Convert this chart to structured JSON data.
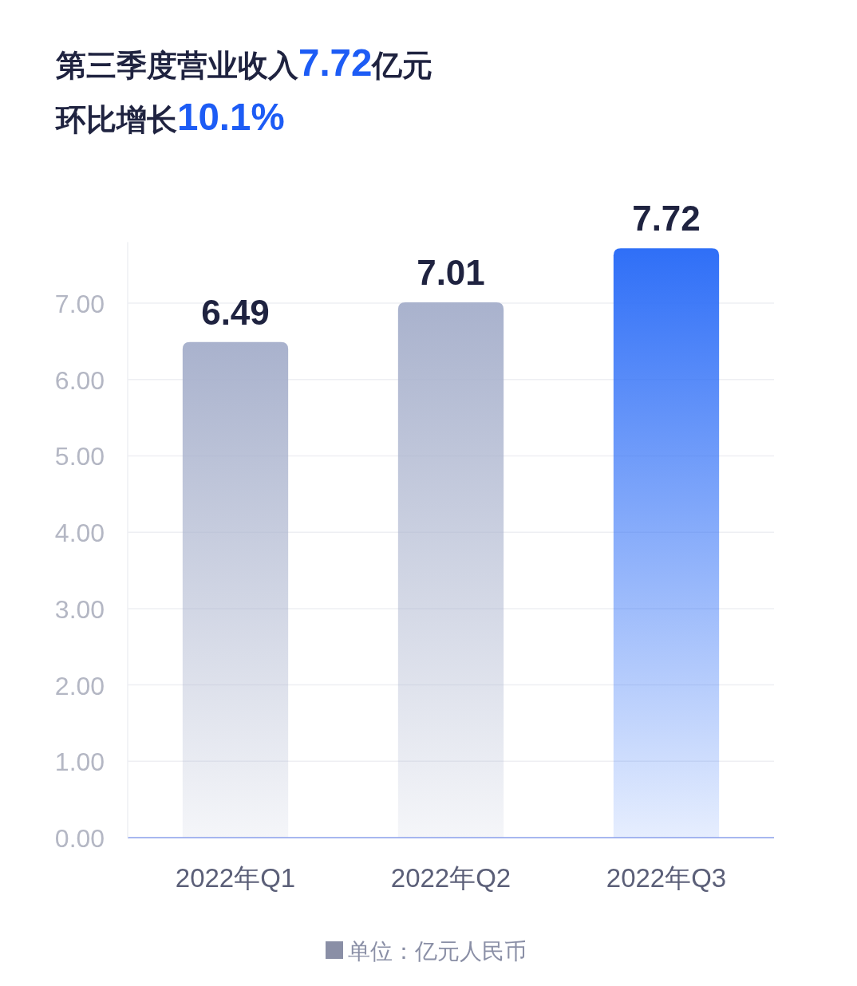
{
  "chart_data": {
    "type": "bar",
    "title": "第三季度营业收入7.72亿元",
    "subtitle": "环比增长10.1%",
    "categories": [
      "2022年Q1",
      "2022年Q2",
      "2022年Q3"
    ],
    "values": [
      6.49,
      7.01,
      7.72
    ],
    "colors": [
      "#a9b2cd",
      "#a9b2cd",
      "#2f6ff7"
    ],
    "ylim": [
      0,
      7.8
    ],
    "yticks": [
      {
        "value": 0,
        "label": "0.00"
      },
      {
        "value": 1,
        "label": "1.00"
      },
      {
        "value": 2,
        "label": "2.00"
      },
      {
        "value": 3,
        "label": "3.00"
      },
      {
        "value": 4,
        "label": "4.00"
      },
      {
        "value": 5,
        "label": "5.00"
      },
      {
        "value": 6,
        "label": "6.00"
      },
      {
        "value": 7,
        "label": "7.00"
      }
    ],
    "grid": "y",
    "data_labels": true,
    "annotations": [
      "单位：亿元人民币"
    ]
  }
}
